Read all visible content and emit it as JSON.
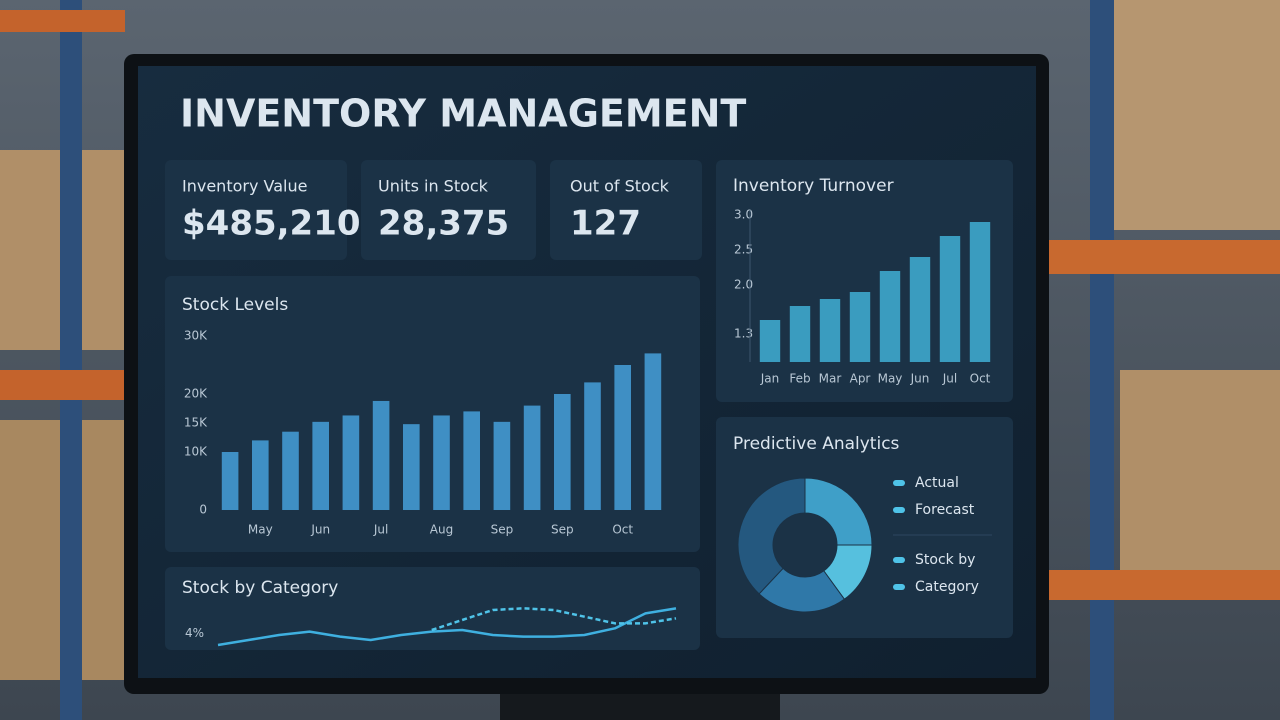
{
  "header": {
    "title": "INVENTORY MANAGEMENT"
  },
  "kpis": [
    {
      "label": "Inventory Value",
      "value": "$485,210"
    },
    {
      "label": "Units in Stock",
      "value": "28,375"
    },
    {
      "label": "Out of Stock",
      "value": "127"
    }
  ],
  "chart_data": [
    {
      "type": "bar",
      "title": "Stock Levels",
      "color": "#3f8fc4",
      "grid": false,
      "categories": [
        null,
        "May",
        null,
        "Jun",
        null,
        "Jul",
        null,
        "Aug",
        null,
        "Sep",
        null,
        "Sep",
        null,
        "Oct",
        null
      ],
      "values": [
        10000,
        12000,
        13500,
        15200,
        16300,
        18800,
        14800,
        16300,
        17000,
        15200,
        18000,
        20000,
        22000,
        25000,
        27000
      ],
      "ylim": [
        0,
        30000
      ],
      "yticks": [
        0,
        {
          "value": 10000,
          "label": "10K"
        },
        {
          "value": 15000,
          "label": "15K"
        },
        {
          "value": 20000,
          "label": "20K"
        },
        {
          "value": 30000,
          "label": "30K"
        }
      ]
    },
    {
      "type": "bar",
      "title": "Inventory Turnover",
      "color": "#3a9cbf",
      "grid": false,
      "categories": [
        "Jan",
        "Feb",
        "Mar",
        "Apr",
        "May",
        "Jun",
        "Jul",
        "Oct"
      ],
      "values": [
        1.5,
        1.7,
        1.8,
        1.9,
        2.2,
        2.4,
        2.7,
        2.9
      ],
      "ylim": [
        0.9,
        3.0
      ],
      "yticks": [
        1.3,
        {
          "value": 2,
          "label": "2.0"
        },
        2.5,
        {
          "value": 3,
          "label": "3.0"
        }
      ]
    },
    {
      "type": "pie",
      "title": "Predictive Analytics",
      "categories": [
        "Actual",
        "Forecast",
        "Stock by",
        "Category"
      ],
      "values": [
        25,
        15,
        22,
        38
      ],
      "colors": [
        "#3f9fc8",
        "#56c0de",
        "#2f78a8",
        "#24587f"
      ]
    },
    {
      "type": "line",
      "title": "Stock by Category",
      "series": [
        {
          "color": "#3fb0e0",
          "values": [
            3.3,
            3.6,
            3.9,
            4.1,
            3.8,
            3.6,
            3.9,
            4.1,
            4.2,
            3.9,
            3.8,
            3.8,
            3.9,
            4.3,
            5.2,
            5.5
          ]
        },
        {
          "color": "#4fc3e8",
          "values": [
            null,
            null,
            null,
            null,
            null,
            null,
            null,
            4.2,
            4.8,
            5.4,
            5.5,
            5.4,
            5.0,
            4.6,
            4.6,
            4.9
          ]
        }
      ],
      "ylim": [
        3,
        6
      ],
      "yticks": [
        {
          "value": 4,
          "label": "4%"
        }
      ]
    }
  ]
}
